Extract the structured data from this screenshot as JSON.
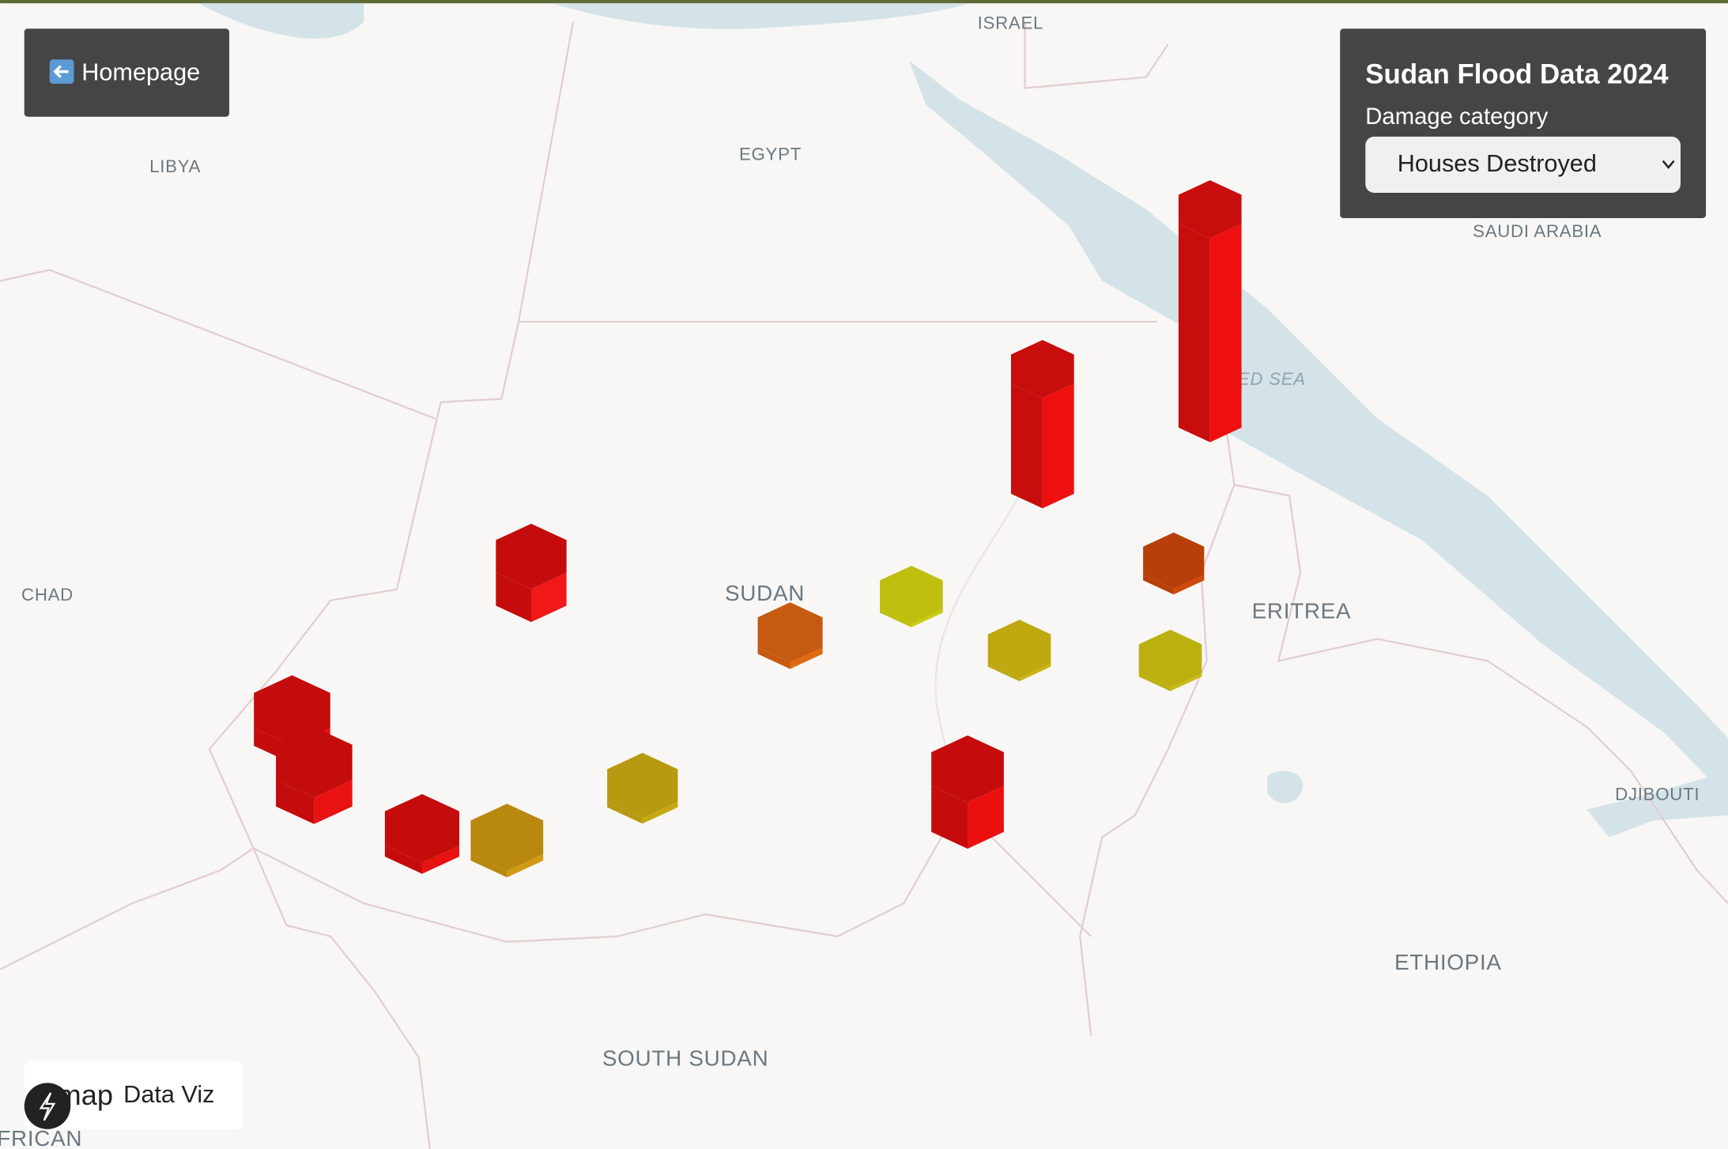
{
  "header": {
    "button": "Homepage"
  },
  "panel": {
    "title": "Sudan Flood Data 2024",
    "label": "Damage category",
    "selected": "Houses Destroyed"
  },
  "map_labels": [
    "ISRAEL",
    "LIBYA",
    "EGYPT",
    "SAUDI ARABIA",
    "RED SEA",
    "CHAD",
    "SUDAN",
    "ERITREA",
    "DJIBOUTI",
    "ETHIOPIA",
    "SOUTH SUDAN",
    "FRICAN"
  ],
  "attribution": {
    "logo_text": "map",
    "text": "Data Viz"
  }
}
